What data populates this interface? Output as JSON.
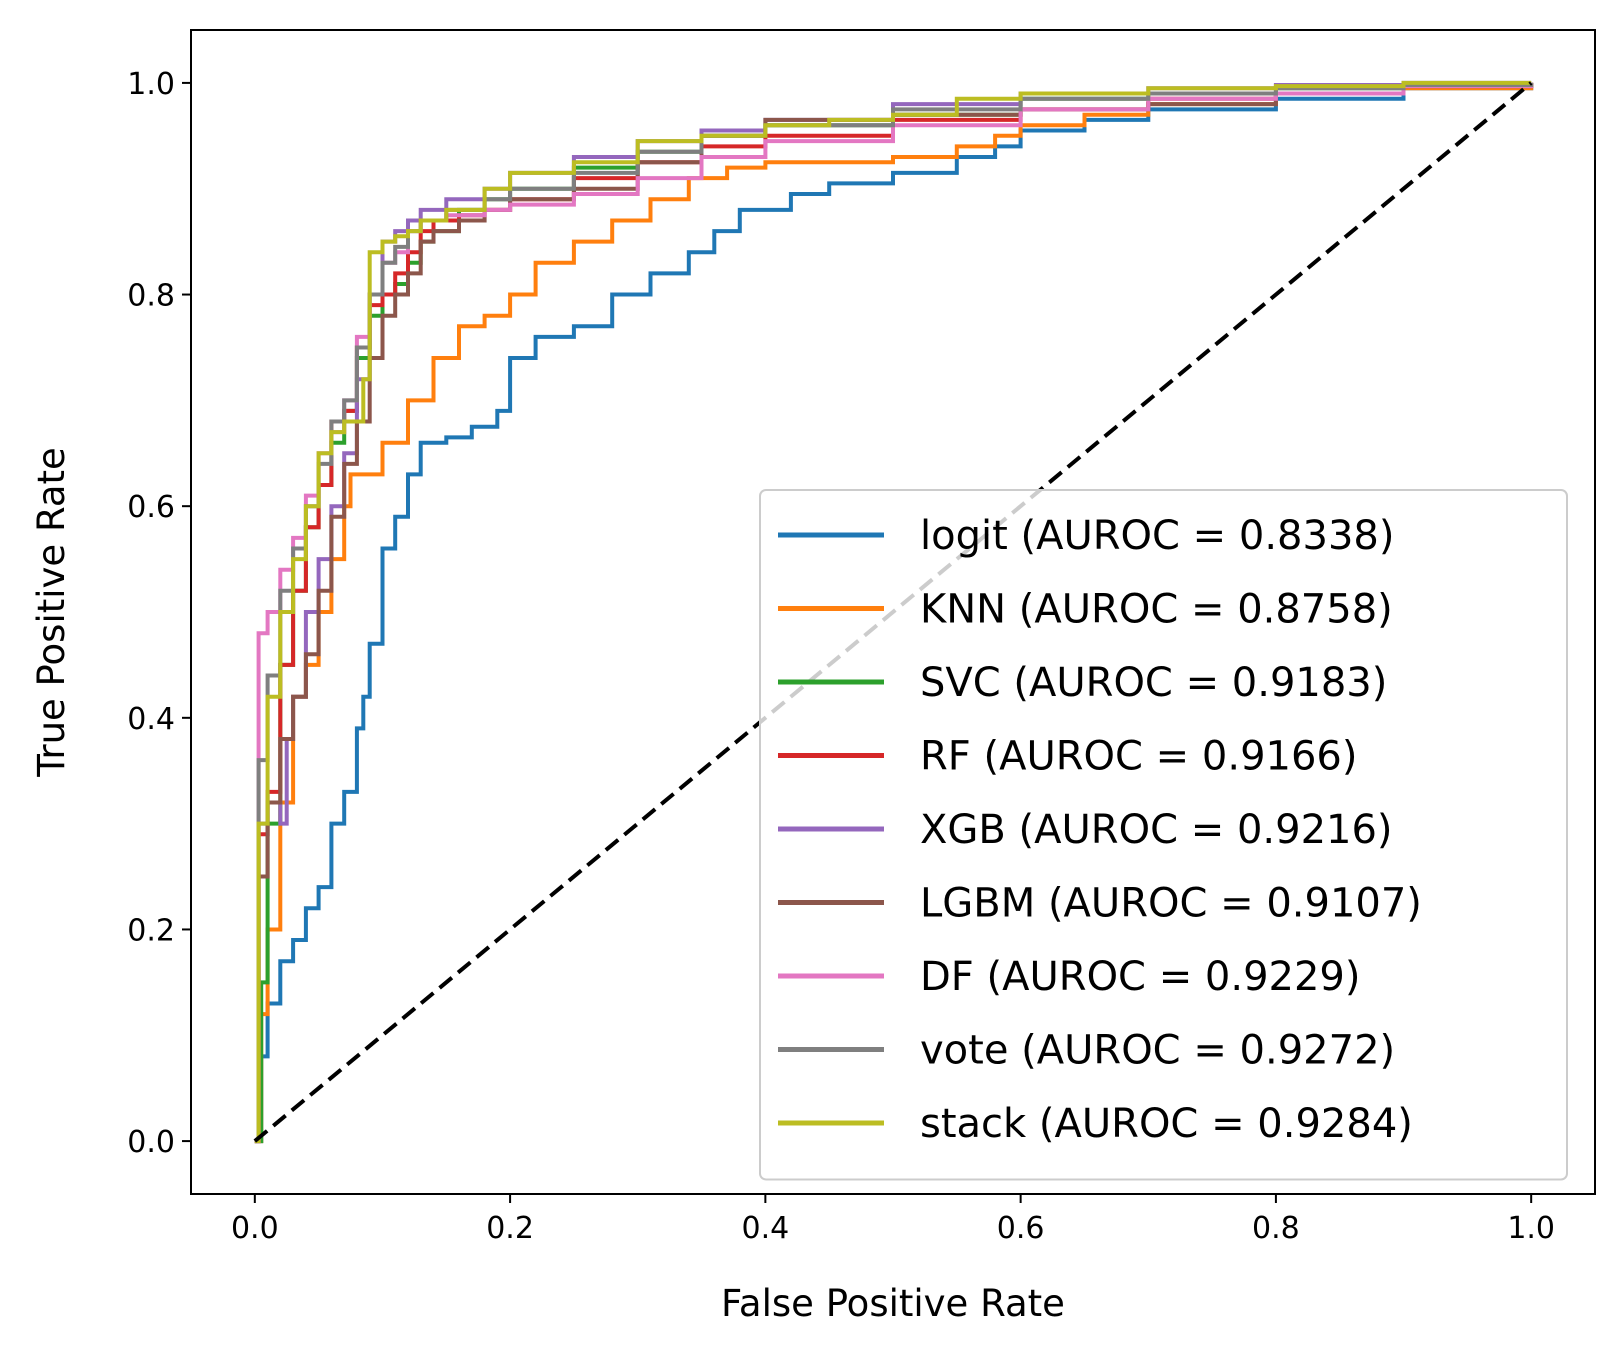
{
  "chart_data": {
    "type": "line",
    "title": "",
    "xlabel": "False Positive Rate",
    "ylabel": "True Positive Rate",
    "xlim": [
      -0.05,
      1.05
    ],
    "ylim": [
      -0.05,
      1.05
    ],
    "xticks": [
      "0.0",
      "0.2",
      "0.4",
      "0.6",
      "0.8",
      "1.0"
    ],
    "yticks": [
      "0.0",
      "0.2",
      "0.4",
      "0.6",
      "0.8",
      "1.0"
    ],
    "grid": false,
    "legend_position": "lower-right",
    "diagonal": {
      "x": [
        0,
        1
      ],
      "y": [
        0,
        1
      ],
      "color": "#000000",
      "style": "dashed"
    },
    "series": [
      {
        "name": "logit (AUROC = 0.8338)",
        "color": "#1f77b4",
        "x": [
          0,
          0.005,
          0.01,
          0.02,
          0.03,
          0.04,
          0.05,
          0.06,
          0.07,
          0.08,
          0.085,
          0.09,
          0.1,
          0.11,
          0.12,
          0.13,
          0.15,
          0.17,
          0.19,
          0.2,
          0.22,
          0.25,
          0.28,
          0.31,
          0.34,
          0.36,
          0.38,
          0.42,
          0.45,
          0.5,
          0.55,
          0.58,
          0.6,
          0.65,
          0.7,
          0.8,
          0.9,
          1.0
        ],
        "y": [
          0,
          0.08,
          0.13,
          0.17,
          0.19,
          0.22,
          0.24,
          0.3,
          0.33,
          0.39,
          0.42,
          0.47,
          0.56,
          0.59,
          0.63,
          0.66,
          0.665,
          0.675,
          0.69,
          0.74,
          0.76,
          0.77,
          0.8,
          0.82,
          0.84,
          0.86,
          0.88,
          0.895,
          0.905,
          0.915,
          0.93,
          0.94,
          0.955,
          0.965,
          0.975,
          0.985,
          0.995,
          1.0
        ]
      },
      {
        "name": "KNN (AUROC = 0.8758)",
        "color": "#ff7f0e",
        "x": [
          0,
          0.005,
          0.01,
          0.02,
          0.03,
          0.04,
          0.05,
          0.06,
          0.07,
          0.075,
          0.08,
          0.1,
          0.12,
          0.14,
          0.16,
          0.18,
          0.2,
          0.22,
          0.25,
          0.28,
          0.31,
          0.34,
          0.37,
          0.4,
          0.45,
          0.5,
          0.55,
          0.58,
          0.6,
          0.65,
          0.7,
          0.8,
          0.9,
          1.0
        ],
        "y": [
          0,
          0.12,
          0.2,
          0.32,
          0.42,
          0.45,
          0.5,
          0.55,
          0.6,
          0.63,
          0.63,
          0.66,
          0.7,
          0.74,
          0.77,
          0.78,
          0.8,
          0.83,
          0.85,
          0.87,
          0.89,
          0.91,
          0.92,
          0.925,
          0.925,
          0.93,
          0.94,
          0.95,
          0.96,
          0.97,
          0.98,
          0.99,
          0.995,
          1.0
        ]
      },
      {
        "name": "SVC (AUROC = 0.9183)",
        "color": "#2ca02c",
        "x": [
          0,
          0.005,
          0.01,
          0.02,
          0.03,
          0.04,
          0.05,
          0.06,
          0.07,
          0.08,
          0.09,
          0.1,
          0.11,
          0.12,
          0.13,
          0.14,
          0.16,
          0.18,
          0.2,
          0.25,
          0.3,
          0.35,
          0.4,
          0.5,
          0.6,
          0.7,
          0.8,
          0.9,
          1.0
        ],
        "y": [
          0,
          0.15,
          0.3,
          0.45,
          0.52,
          0.58,
          0.62,
          0.66,
          0.69,
          0.74,
          0.78,
          0.8,
          0.81,
          0.83,
          0.85,
          0.86,
          0.88,
          0.89,
          0.9,
          0.92,
          0.935,
          0.95,
          0.96,
          0.97,
          0.985,
          0.99,
          0.995,
          0.998,
          1.0
        ]
      },
      {
        "name": "RF (AUROC = 0.9166)",
        "color": "#d62728",
        "x": [
          0,
          0.003,
          0.01,
          0.02,
          0.03,
          0.04,
          0.05,
          0.06,
          0.07,
          0.08,
          0.09,
          0.1,
          0.11,
          0.12,
          0.13,
          0.14,
          0.16,
          0.18,
          0.2,
          0.25,
          0.3,
          0.35,
          0.4,
          0.5,
          0.6,
          0.7,
          0.8,
          0.9,
          1.0
        ],
        "y": [
          0,
          0.29,
          0.33,
          0.45,
          0.52,
          0.58,
          0.62,
          0.68,
          0.69,
          0.75,
          0.79,
          0.8,
          0.82,
          0.84,
          0.86,
          0.87,
          0.875,
          0.88,
          0.89,
          0.91,
          0.925,
          0.94,
          0.95,
          0.965,
          0.975,
          0.985,
          0.99,
          0.997,
          1.0
        ]
      },
      {
        "name": "XGB (AUROC = 0.9216)",
        "color": "#9467bd",
        "x": [
          0,
          0.003,
          0.01,
          0.02,
          0.025,
          0.03,
          0.04,
          0.05,
          0.06,
          0.07,
          0.08,
          0.09,
          0.1,
          0.11,
          0.12,
          0.13,
          0.15,
          0.18,
          0.2,
          0.25,
          0.3,
          0.35,
          0.4,
          0.5,
          0.6,
          0.7,
          0.8,
          0.9,
          1.0
        ],
        "y": [
          0,
          0.3,
          0.32,
          0.3,
          0.38,
          0.42,
          0.5,
          0.55,
          0.6,
          0.65,
          0.72,
          0.8,
          0.85,
          0.86,
          0.87,
          0.88,
          0.89,
          0.9,
          0.915,
          0.93,
          0.945,
          0.955,
          0.965,
          0.98,
          0.99,
          0.995,
          0.998,
          1.0,
          1.0
        ]
      },
      {
        "name": "LGBM (AUROC = 0.9107)",
        "color": "#8c564b",
        "x": [
          0,
          0.003,
          0.01,
          0.02,
          0.03,
          0.04,
          0.05,
          0.06,
          0.07,
          0.08,
          0.09,
          0.1,
          0.11,
          0.12,
          0.13,
          0.14,
          0.16,
          0.18,
          0.2,
          0.25,
          0.3,
          0.35,
          0.4,
          0.5,
          0.6,
          0.7,
          0.8,
          0.9,
          1.0
        ],
        "y": [
          0,
          0.25,
          0.32,
          0.38,
          0.42,
          0.46,
          0.52,
          0.59,
          0.64,
          0.68,
          0.74,
          0.78,
          0.8,
          0.82,
          0.85,
          0.86,
          0.87,
          0.88,
          0.89,
          0.9,
          0.925,
          0.95,
          0.965,
          0.97,
          0.975,
          0.98,
          0.99,
          0.997,
          1.0
        ]
      },
      {
        "name": "DF (AUROC = 0.9229)",
        "color": "#e377c2",
        "x": [
          0,
          0.003,
          0.01,
          0.02,
          0.03,
          0.04,
          0.05,
          0.06,
          0.07,
          0.08,
          0.09,
          0.1,
          0.11,
          0.12,
          0.13,
          0.15,
          0.18,
          0.2,
          0.25,
          0.3,
          0.35,
          0.4,
          0.5,
          0.6,
          0.7,
          0.8,
          0.9,
          1.0
        ],
        "y": [
          0,
          0.48,
          0.5,
          0.54,
          0.57,
          0.61,
          0.65,
          0.67,
          0.7,
          0.76,
          0.8,
          0.83,
          0.84,
          0.86,
          0.87,
          0.875,
          0.88,
          0.885,
          0.895,
          0.91,
          0.93,
          0.945,
          0.96,
          0.975,
          0.985,
          0.99,
          0.997,
          1.0
        ]
      },
      {
        "name": "vote (AUROC = 0.9272)",
        "color": "#7f7f7f",
        "x": [
          0,
          0.003,
          0.01,
          0.02,
          0.03,
          0.04,
          0.05,
          0.06,
          0.07,
          0.08,
          0.09,
          0.1,
          0.11,
          0.12,
          0.13,
          0.15,
          0.18,
          0.2,
          0.25,
          0.3,
          0.35,
          0.4,
          0.5,
          0.6,
          0.7,
          0.8,
          0.9,
          1.0
        ],
        "y": [
          0,
          0.36,
          0.44,
          0.52,
          0.56,
          0.6,
          0.64,
          0.68,
          0.7,
          0.75,
          0.8,
          0.83,
          0.845,
          0.86,
          0.87,
          0.88,
          0.89,
          0.9,
          0.915,
          0.935,
          0.95,
          0.96,
          0.975,
          0.985,
          0.99,
          0.995,
          0.998,
          1.0
        ]
      },
      {
        "name": "stack (AUROC = 0.9284)",
        "color": "#bcbd22",
        "x": [
          0,
          0.003,
          0.01,
          0.02,
          0.03,
          0.04,
          0.05,
          0.06,
          0.07,
          0.08,
          0.085,
          0.09,
          0.1,
          0.11,
          0.12,
          0.13,
          0.15,
          0.18,
          0.2,
          0.25,
          0.3,
          0.35,
          0.4,
          0.45,
          0.5,
          0.55,
          0.6,
          0.7,
          0.8,
          0.9,
          1.0
        ],
        "y": [
          0,
          0.3,
          0.42,
          0.5,
          0.55,
          0.6,
          0.65,
          0.67,
          0.68,
          0.68,
          0.72,
          0.84,
          0.85,
          0.855,
          0.86,
          0.87,
          0.88,
          0.9,
          0.915,
          0.925,
          0.945,
          0.95,
          0.96,
          0.965,
          0.97,
          0.985,
          0.99,
          0.995,
          0.997,
          1.0,
          1.0
        ]
      }
    ]
  }
}
